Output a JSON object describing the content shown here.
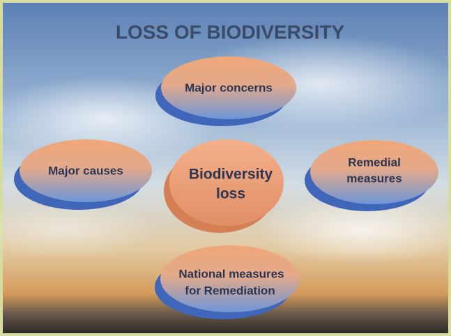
{
  "header": {
    "title": "LOSS OF BIODIVERSITY"
  },
  "nodes": [
    {
      "lines": [
        "Major concerns"
      ]
    },
    {
      "lines": [
        "Major causes"
      ]
    },
    {
      "lines": [
        "Biodiversity",
        "loss"
      ]
    },
    {
      "lines": [
        "Remedial",
        "measures"
      ]
    },
    {
      "lines": [
        "National measures",
        "for Remediation"
      ]
    }
  ]
}
